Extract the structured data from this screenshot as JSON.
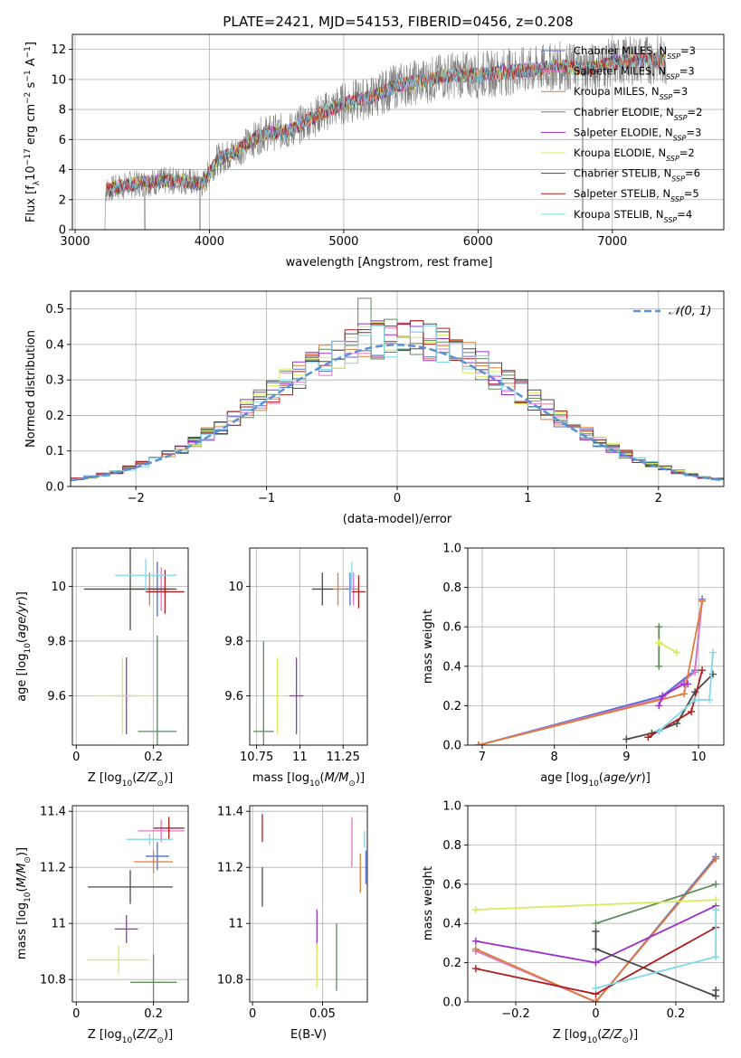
{
  "title": "PLATE=2421, MJD=54153, FIBERID=0456, z=0.208",
  "models": [
    {
      "name": "Chabrier MILES",
      "nssp": "3",
      "color": "#4f6fd1"
    },
    {
      "name": "Salpeter MILES",
      "nssp": "3",
      "color": "#e377c2"
    },
    {
      "name": "Kroupa MILES",
      "nssp": "3",
      "color": "#e07b39"
    },
    {
      "name": "Chabrier ELODIE",
      "nssp": "2",
      "color": "#5b8c5a"
    },
    {
      "name": "Salpeter ELODIE",
      "nssp": "3",
      "color": "#9b30c8"
    },
    {
      "name": "Kroupa ELODIE",
      "nssp": "2",
      "color": "#d4ed5a"
    },
    {
      "name": "Chabrier STELIB",
      "nssp": "6",
      "color": "#4a4a4a"
    },
    {
      "name": "Salpeter STELIB",
      "nssp": "5",
      "color": "#b01c1c"
    },
    {
      "name": "Kroupa STELIB",
      "nssp": "4",
      "color": "#7fd8e8"
    }
  ],
  "chart_data": [
    {
      "id": "spectrum",
      "type": "line",
      "xlabel": "wavelength [Angstrom, rest frame]",
      "ylabel": "Flux [f_λ 10^-17 erg cm^-2 s^-1 A^-1]",
      "xlim": [
        2980,
        7830
      ],
      "ylim": [
        0,
        13
      ],
      "xticks": [
        3000,
        4000,
        5000,
        6000,
        7000
      ],
      "yticks": [
        0,
        2,
        4,
        6,
        8,
        10,
        12
      ],
      "observed_color": "#808080",
      "continuum": [
        [
          3220,
          2.6
        ],
        [
          3400,
          3.0
        ],
        [
          3600,
          3.2
        ],
        [
          3800,
          3.3
        ],
        [
          3950,
          3.0
        ],
        [
          4050,
          4.6
        ],
        [
          4200,
          5.2
        ],
        [
          4400,
          6.4
        ],
        [
          4600,
          6.6
        ],
        [
          4800,
          7.6
        ],
        [
          5000,
          8.4
        ],
        [
          5200,
          8.8
        ],
        [
          5400,
          9.6
        ],
        [
          5600,
          9.9
        ],
        [
          5800,
          10.3
        ],
        [
          6000,
          10.3
        ],
        [
          6200,
          10.5
        ],
        [
          6400,
          10.6
        ],
        [
          6600,
          10.9
        ],
        [
          6800,
          10.7
        ],
        [
          7000,
          11.1
        ],
        [
          7200,
          11.3
        ],
        [
          7400,
          11.3
        ]
      ]
    },
    {
      "id": "residuals",
      "type": "histogram",
      "xlabel": "(data-model)/error",
      "ylabel": "Normed distribution",
      "xlim": [
        -2.5,
        2.5
      ],
      "ylim": [
        0,
        0.55
      ],
      "xticks": [
        -2,
        -1,
        0,
        1,
        2
      ],
      "yticks": [
        0.0,
        0.1,
        0.2,
        0.3,
        0.4,
        0.5
      ],
      "legend": "𝒩(0, 1)",
      "legend_position": "top-right",
      "normal_color": "#5b8fd6"
    },
    {
      "id": "age-vs-z",
      "type": "errorbar",
      "xlabel": "Z [log10(Z/Z⊙)]",
      "ylabel": "age [log10(age/yr)]",
      "xlim": [
        -0.01,
        0.29
      ],
      "ylim": [
        9.42,
        10.14
      ],
      "xticks": [
        0.0,
        0.2
      ],
      "yticks": [
        9.6,
        9.8,
        10.0
      ],
      "points": [
        {
          "m": 0,
          "x": 0.21,
          "xe": 0.03,
          "y": 9.99,
          "ye": 0.1
        },
        {
          "m": 1,
          "x": 0.22,
          "xe": 0.03,
          "y": 9.99,
          "ye": 0.08
        },
        {
          "m": 2,
          "x": 0.19,
          "xe": 0.05,
          "y": 9.99,
          "ye": 0.06
        },
        {
          "m": 3,
          "x": 0.21,
          "xe": 0.05,
          "y": 9.47,
          "ye": 0.35
        },
        {
          "m": 4,
          "x": 0.13,
          "xe": 0.03,
          "y": 9.6,
          "ye": 0.14
        },
        {
          "m": 5,
          "x": 0.12,
          "xe": 0.08,
          "y": 9.6,
          "ye": 0.14
        },
        {
          "m": 6,
          "x": 0.14,
          "xe": 0.12,
          "y": 9.99,
          "ye": 0.15
        },
        {
          "m": 7,
          "x": 0.23,
          "xe": 0.05,
          "y": 9.98,
          "ye": 0.08
        },
        {
          "m": 8,
          "x": 0.18,
          "xe": 0.08,
          "y": 10.04,
          "ye": 0.06
        }
      ]
    },
    {
      "id": "age-vs-mass",
      "type": "errorbar",
      "xlabel": "mass [log10(M/M⊙)]",
      "ylabel": "",
      "xlim": [
        10.71,
        11.39
      ],
      "ylim": [
        9.42,
        10.14
      ],
      "xticks": [
        10.75,
        11.0,
        11.25
      ],
      "yticks": [
        9.6,
        9.8,
        10.0
      ],
      "points": [
        {
          "m": 0,
          "x": 11.29,
          "xe": 0.03,
          "y": 9.99,
          "ye": 0.06
        },
        {
          "m": 1,
          "x": 11.31,
          "xe": 0.03,
          "y": 9.99,
          "ye": 0.06
        },
        {
          "m": 2,
          "x": 11.22,
          "xe": 0.04,
          "y": 9.99,
          "ye": 0.06
        },
        {
          "m": 3,
          "x": 10.79,
          "xe": 0.06,
          "y": 9.47,
          "ye": 0.33
        },
        {
          "m": 4,
          "x": 10.98,
          "xe": 0.04,
          "y": 9.6,
          "ye": 0.14
        },
        {
          "m": 5,
          "x": 10.87,
          "xe": 0.04,
          "y": 9.6,
          "ye": 0.14
        },
        {
          "m": 6,
          "x": 11.13,
          "xe": 0.06,
          "y": 9.99,
          "ye": 0.06
        },
        {
          "m": 7,
          "x": 11.34,
          "xe": 0.04,
          "y": 9.98,
          "ye": 0.06
        },
        {
          "m": 8,
          "x": 11.3,
          "xe": 0.02,
          "y": 10.04,
          "ye": 0.05
        }
      ]
    },
    {
      "id": "weight-vs-age",
      "type": "line",
      "xlabel": "age [log10(age/yr)]",
      "ylabel": "mass weight",
      "xlim": [
        6.8,
        10.35
      ],
      "ylim": [
        0,
        1.0
      ],
      "xticks": [
        7,
        8,
        9,
        10
      ],
      "yticks": [
        0.0,
        0.2,
        0.4,
        0.6,
        0.8,
        1.0
      ],
      "series": [
        {
          "m": 0,
          "x": [
            6.95,
            9.5,
            9.95,
            10.05
          ],
          "y": [
            0.0,
            0.25,
            0.38,
            0.74
          ]
        },
        {
          "m": 1,
          "x": [
            6.95,
            9.5,
            9.95,
            10.05
          ],
          "y": [
            0.0,
            0.24,
            0.37,
            0.73
          ]
        },
        {
          "m": 2,
          "x": [
            6.95,
            9.8,
            10.05
          ],
          "y": [
            0.0,
            0.26,
            0.73
          ]
        },
        {
          "m": 3,
          "x": [
            9.45,
            9.45
          ],
          "y": [
            0.4,
            0.6
          ]
        },
        {
          "m": 4,
          "x": [
            9.45,
            9.5,
            9.8,
            9.85
          ],
          "y": [
            0.2,
            0.25,
            0.31,
            0.31
          ]
        },
        {
          "m": 5,
          "x": [
            9.45,
            9.7
          ],
          "y": [
            0.52,
            0.47
          ]
        },
        {
          "m": 6,
          "x": [
            9.0,
            9.35,
            9.7,
            9.95,
            10.2
          ],
          "y": [
            0.03,
            0.06,
            0.11,
            0.27,
            0.36
          ]
        },
        {
          "m": 7,
          "x": [
            9.3,
            9.9,
            10.05
          ],
          "y": [
            0.04,
            0.17,
            0.38
          ]
        },
        {
          "m": 8,
          "x": [
            9.45,
            9.95,
            10.15,
            10.2
          ],
          "y": [
            0.07,
            0.23,
            0.23,
            0.47
          ]
        }
      ]
    },
    {
      "id": "mass-vs-z",
      "type": "errorbar",
      "xlabel": "Z [log10(Z/Z⊙)]",
      "ylabel": "mass [log10(M/M⊙)]",
      "xlim": [
        -0.01,
        0.29
      ],
      "ylim": [
        10.72,
        11.42
      ],
      "xticks": [
        0.0,
        0.2
      ],
      "yticks": [
        10.8,
        11.0,
        11.2,
        11.4
      ],
      "points": [
        {
          "m": 0,
          "x": 0.21,
          "xe": 0.03,
          "y": 11.24,
          "ye": 0.05
        },
        {
          "m": 1,
          "x": 0.22,
          "xe": 0.06,
          "y": 11.33,
          "ye": 0.04
        },
        {
          "m": 2,
          "x": 0.2,
          "xe": 0.05,
          "y": 11.22,
          "ye": 0.04
        },
        {
          "m": 3,
          "x": 0.2,
          "xe": 0.06,
          "y": 10.79,
          "ye": 0.1
        },
        {
          "m": 4,
          "x": 0.13,
          "xe": 0.03,
          "y": 10.98,
          "ye": 0.05
        },
        {
          "m": 5,
          "x": 0.11,
          "xe": 0.08,
          "y": 10.87,
          "ye": 0.05
        },
        {
          "m": 6,
          "x": 0.14,
          "xe": 0.11,
          "y": 11.13,
          "ye": 0.06
        },
        {
          "m": 7,
          "x": 0.24,
          "xe": 0.04,
          "y": 11.34,
          "ye": 0.04
        },
        {
          "m": 8,
          "x": 0.19,
          "xe": 0.06,
          "y": 11.3,
          "ye": 0.02
        }
      ]
    },
    {
      "id": "mass-vs-ebv",
      "type": "errorbar",
      "xlabel": "E(B-V)",
      "ylabel": "",
      "xlim": [
        -0.002,
        0.082
      ],
      "ylim": [
        10.72,
        11.42
      ],
      "xticks": [
        0.0,
        0.05
      ],
      "yticks": [
        10.8,
        11.0,
        11.2,
        11.4
      ],
      "points": [
        {
          "m": 0,
          "x": 0.081,
          "xe": 0.0,
          "y": 11.2,
          "ye": 0.06
        },
        {
          "m": 1,
          "x": 0.071,
          "xe": 0.0,
          "y": 11.29,
          "ye": 0.09
        },
        {
          "m": 2,
          "x": 0.077,
          "xe": 0.0,
          "y": 11.18,
          "ye": 0.07
        },
        {
          "m": 3,
          "x": 0.06,
          "xe": 0.0,
          "y": 10.88,
          "ye": 0.12
        },
        {
          "m": 4,
          "x": 0.046,
          "xe": 0.0,
          "y": 10.98,
          "ye": 0.07
        },
        {
          "m": 5,
          "x": 0.046,
          "xe": 0.0,
          "y": 10.85,
          "ye": 0.08
        },
        {
          "m": 6,
          "x": 0.007,
          "xe": 0.0,
          "y": 11.13,
          "ye": 0.07
        },
        {
          "m": 7,
          "x": 0.007,
          "xe": 0.0,
          "y": 11.34,
          "ye": 0.05
        },
        {
          "m": 8,
          "x": 0.08,
          "xe": 0.0,
          "y": 11.3,
          "ye": 0.03
        }
      ]
    },
    {
      "id": "weight-vs-z",
      "type": "line",
      "xlabel": "Z [log10(Z/Z⊙)]",
      "ylabel": "mass weight",
      "xlim": [
        -0.32,
        0.32
      ],
      "ylim": [
        0,
        1.0
      ],
      "xticks": [
        -0.2,
        0.0,
        0.2
      ],
      "yticks": [
        0.0,
        0.2,
        0.4,
        0.6,
        0.8,
        1.0
      ],
      "series": [
        {
          "m": 0,
          "x": [
            -0.3,
            0.0,
            0.3
          ],
          "y": [
            0.26,
            0.0,
            0.74
          ]
        },
        {
          "m": 1,
          "x": [
            -0.3,
            0.0,
            0.3
          ],
          "y": [
            0.26,
            0.0,
            0.73
          ]
        },
        {
          "m": 2,
          "x": [
            -0.3,
            0.0,
            0.3
          ],
          "y": [
            0.27,
            0.0,
            0.73
          ]
        },
        {
          "m": 3,
          "x": [
            0.0,
            0.3
          ],
          "y": [
            0.4,
            0.6
          ]
        },
        {
          "m": 4,
          "x": [
            -0.3,
            0.0,
            0.3
          ],
          "y": [
            0.31,
            0.2,
            0.49
          ]
        },
        {
          "m": 5,
          "x": [
            -0.3,
            0.3
          ],
          "y": [
            0.47,
            0.52
          ]
        },
        {
          "m": 6,
          "x": [
            0.0,
            0.0,
            0.3,
            0.3
          ],
          "y": [
            0.36,
            0.27,
            0.03,
            0.06
          ]
        },
        {
          "m": 7,
          "x": [
            -0.3,
            0.0,
            0.3
          ],
          "y": [
            0.17,
            0.04,
            0.38
          ]
        },
        {
          "m": 8,
          "x": [
            0.0,
            0.3,
            0.3
          ],
          "y": [
            0.07,
            0.23,
            0.47
          ]
        }
      ]
    }
  ]
}
